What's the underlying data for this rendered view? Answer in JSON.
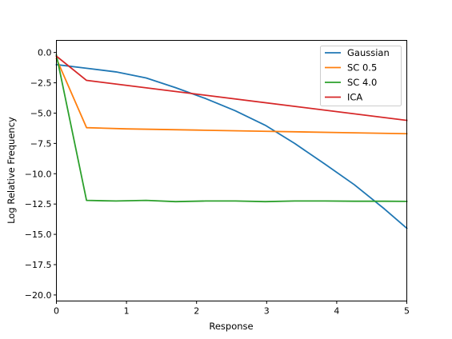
{
  "chart_data": {
    "type": "line",
    "title": "",
    "xlabel": "Response",
    "ylabel": "Log Relative Frequency",
    "xlim": [
      0,
      5
    ],
    "ylim": [
      -20.5,
      1.0
    ],
    "xticks": [
      0,
      1,
      2,
      3,
      4,
      5
    ],
    "xtick_labels": [
      "0",
      "1",
      "2",
      "3",
      "4",
      "5"
    ],
    "yticks": [
      0.0,
      -2.5,
      -5.0,
      -7.5,
      -10.0,
      -12.5,
      -15.0,
      -17.5,
      -20.0
    ],
    "ytick_labels": [
      "0.0",
      "−2.5",
      "−5.0",
      "−7.5",
      "−10.0",
      "−12.5",
      "−15.0",
      "−17.5",
      "−20.0"
    ],
    "grid": false,
    "legend_position": "top-right",
    "series": [
      {
        "name": "Gaussian",
        "color": "#1f77b4",
        "x": [
          0,
          0.43,
          0.85,
          1.28,
          1.7,
          2.13,
          2.55,
          2.98,
          3.4,
          3.83,
          4.25,
          4.68,
          5.0
        ],
        "y": [
          -1.0,
          -1.3,
          -1.6,
          -2.1,
          -2.9,
          -3.8,
          -4.8,
          -6.0,
          -7.5,
          -9.2,
          -10.9,
          -12.9,
          -14.5
        ]
      },
      {
        "name": "SC 0.5",
        "color": "#ff7f0e",
        "x": [
          0,
          0.43,
          1.0,
          2.0,
          3.0,
          4.0,
          5.0
        ],
        "y": [
          -0.5,
          -6.2,
          -6.3,
          -6.4,
          -6.5,
          -6.6,
          -6.7
        ]
      },
      {
        "name": "SC 4.0",
        "color": "#2ca02c",
        "x": [
          0,
          0.43,
          0.85,
          1.28,
          1.7,
          2.13,
          2.55,
          2.98,
          3.4,
          3.83,
          4.25,
          4.68,
          5.0
        ],
        "y": [
          -0.2,
          -12.2,
          -12.25,
          -12.2,
          -12.3,
          -12.25,
          -12.25,
          -12.3,
          -12.25,
          -12.25,
          -12.27,
          -12.27,
          -12.28
        ]
      },
      {
        "name": "ICA",
        "color": "#d62728",
        "x": [
          0,
          0.43,
          5.0
        ],
        "y": [
          -0.3,
          -2.3,
          -5.6
        ]
      }
    ]
  }
}
